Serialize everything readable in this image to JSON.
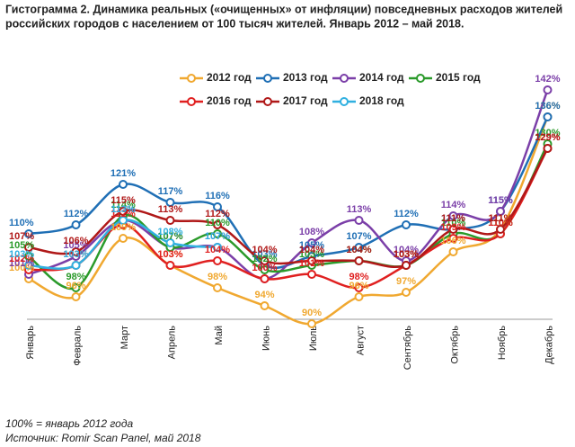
{
  "chart_data": {
    "type": "line",
    "title": "Гистограмма 2. Динамика реальных («очищенных» от инфляции) повседневных расходов жителей",
    "subtitle": "российских городов с населением от 100 тысяч жителей. Январь 2012 – май 2018.",
    "categories": [
      "Январь",
      "Февраль",
      "Март",
      "Апрель",
      "Май",
      "Июнь",
      "Июль",
      "Август",
      "Сентябрь",
      "Октябрь",
      "Ноябрь",
      "Декабрь"
    ],
    "series": [
      {
        "name": "2012 год",
        "color": "#f0a830",
        "values": [
          100,
          96,
          109,
          103,
          98,
          94,
          90,
          96,
          97,
          106,
          111,
          136
        ],
        "value_labels": [
          "100%",
          "96%",
          "109%",
          "103%",
          "98%",
          "94%",
          "90%",
          "96%",
          "97%",
          "106%",
          "111%",
          "136%"
        ]
      },
      {
        "name": "2013 год",
        "color": "#1f6fb5",
        "values": [
          110,
          112,
          121,
          117,
          116,
          103,
          105,
          107,
          112,
          111,
          115,
          136
        ],
        "value_labels": [
          "110%",
          "112%",
          "121%",
          "117%",
          "116%",
          "103%",
          "105%",
          "107%",
          "112%",
          "111%",
          "115%",
          "136%"
        ]
      },
      {
        "name": "2014 год",
        "color": "#7b3fa8",
        "values": [
          101,
          105,
          113,
          107,
          107,
          100,
          108,
          113,
          104,
          114,
          115,
          142
        ],
        "value_labels": [
          "101%",
          "105%",
          "113%",
          "107%",
          "107%",
          "100%",
          "108%",
          "113%",
          "104%",
          "114%",
          "115%",
          "142%"
        ]
      },
      {
        "name": "2015 год",
        "color": "#2a9a2a",
        "values": [
          105,
          98,
          114,
          107,
          110,
          102,
          103,
          104,
          103,
          110,
          110,
          130
        ],
        "value_labels": [
          "105%",
          "98%",
          "114%",
          "107%",
          "110%",
          "102%",
          "103%",
          "104%",
          "103%",
          "110%",
          "110%",
          "130%"
        ]
      },
      {
        "name": "2016 год",
        "color": "#e02020",
        "values": [
          102,
          103,
          112,
          103,
          104,
          100,
          101,
          98,
          103,
          109,
          110,
          129
        ],
        "value_labels": [
          "102%",
          "103%",
          "112%",
          "103%",
          "104%",
          "100%",
          "101%",
          "98%",
          "103%",
          "109%",
          "110%",
          "129%"
        ]
      },
      {
        "name": "2017 год",
        "color": "#b01818",
        "values": [
          107,
          106,
          115,
          113,
          112,
          104,
          104,
          104,
          103,
          111,
          111,
          129
        ],
        "value_labels": [
          "107%",
          "106%",
          "115%",
          "113%",
          "112%",
          "104%",
          "104%",
          "104%",
          "103%",
          "111%",
          "111%",
          "129%"
        ]
      },
      {
        "name": "2018 год",
        "color": "#30b0e0",
        "values": [
          103,
          103,
          113,
          108,
          107,
          null,
          null,
          null,
          null,
          null,
          null,
          null
        ],
        "value_labels": [
          "103%",
          "103%",
          "113%",
          "108%",
          "107%",
          null,
          null,
          null,
          null,
          null,
          null,
          null
        ]
      }
    ],
    "ylim": [
      75,
      150
    ],
    "notes": [
      "100% = январь 2012 года",
      "Источник: Romir Scan Panel, май 2018"
    ]
  }
}
